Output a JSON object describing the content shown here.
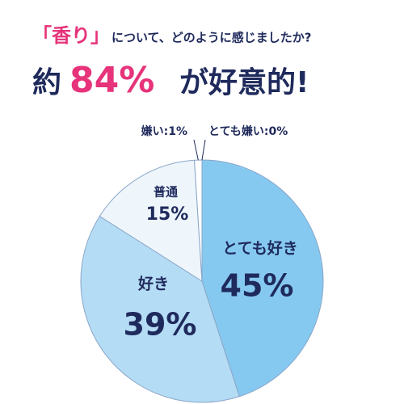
{
  "chart_data": {
    "type": "pie",
    "title_parts": [
      "「香り」",
      "について、どのように感じましたか?"
    ],
    "subtitle_parts": [
      "約",
      "84%",
      "が好意的!"
    ],
    "categories": [
      "とても好き",
      "好き",
      "普通",
      null,
      null
    ],
    "values": [
      45,
      39,
      15,
      1,
      0
    ],
    "value_labels": [
      "45%",
      "39%",
      "15%",
      "嫌い:1%",
      "とても嫌い:0%"
    ],
    "colors": [
      "#86c9f0",
      "#b5dcf5",
      "#eef6fc",
      "#ffffff",
      "#ffffff"
    ]
  }
}
